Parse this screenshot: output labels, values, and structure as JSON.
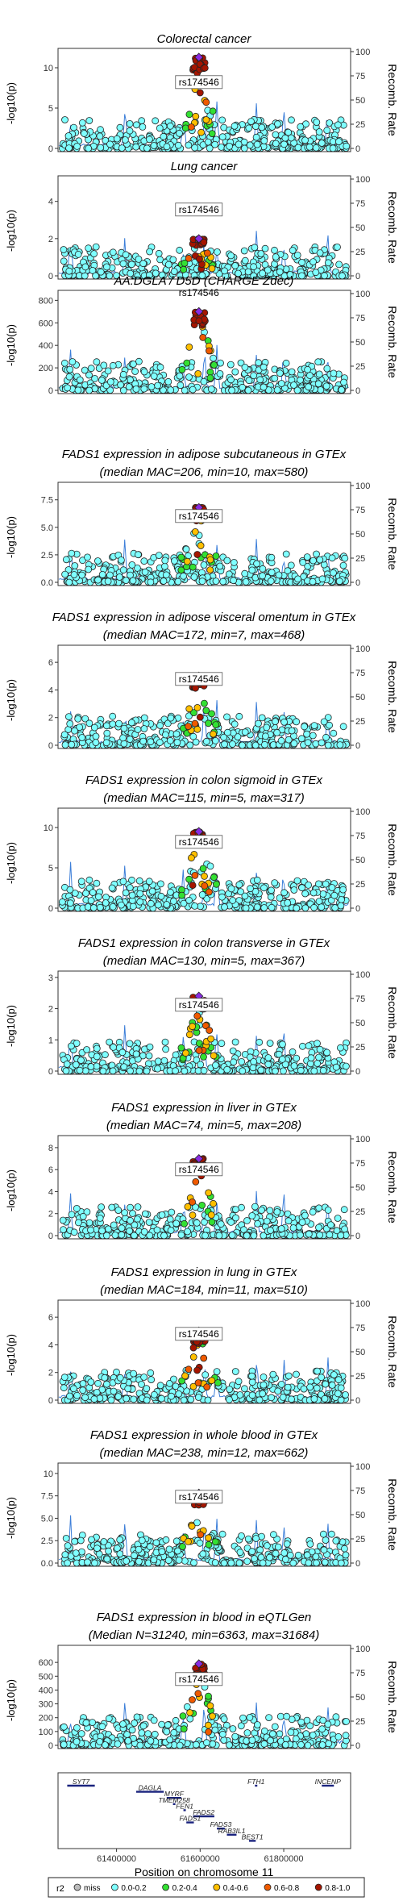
{
  "chart_data": [
    {
      "type": "scatter",
      "title": "Colorectal cancer",
      "subtitle": "",
      "ylabel": "-log10(p)",
      "y2label": "Recomb. Rate",
      "ylim": [
        0,
        12
      ],
      "yticks": [
        0,
        5,
        10
      ],
      "y2ticks": [
        0,
        25,
        50,
        75,
        100
      ],
      "lead_snp": "rs174546",
      "lead_value": 11.3,
      "seed": 11
    },
    {
      "type": "scatter",
      "title": "Lung cancer",
      "subtitle": "",
      "ylabel": "-log10(p)",
      "y2label": "Recomb. Rate",
      "ylim": [
        0,
        5.2
      ],
      "yticks": [
        0,
        2,
        4
      ],
      "y2ticks": [
        0,
        25,
        50,
        75,
        100
      ],
      "lead_snp": "rs174546",
      "lead_value": 2.0,
      "seed": 23
    },
    {
      "type": "scatter",
      "title": "AA:DGLA / D5D (CHARGE Zdec)",
      "subtitle": "",
      "ylabel": "-log10(p)",
      "y2label": "Recomb. Rate",
      "ylim": [
        0,
        860
      ],
      "yticks": [
        0,
        200,
        400,
        600,
        800
      ],
      "y2ticks": [
        0,
        25,
        50,
        75,
        100
      ],
      "lead_snp": "rs174546",
      "lead_value": 700,
      "seed": 37
    },
    {
      "type": "scatter",
      "title": "FADS1 expression in adipose subcutaneous in GTEx",
      "subtitle": "(median MAC=206, min=10, max=580)",
      "ylabel": "-log10(p)",
      "y2label": "Recomb. Rate",
      "ylim": [
        0,
        8.8
      ],
      "yticks": [
        0,
        2.5,
        5.0,
        7.5
      ],
      "y2ticks": [
        0,
        25,
        50,
        75,
        100
      ],
      "lead_snp": "rs174546",
      "lead_value": 6.8,
      "seed": 41
    },
    {
      "type": "scatter",
      "title": "FADS1 expression in adipose visceral omentum in GTEx",
      "subtitle": "(median MAC=172, min=7, max=468)",
      "ylabel": "-log10(p)",
      "y2label": "Recomb. Rate",
      "ylim": [
        0,
        7
      ],
      "yticks": [
        0,
        2,
        4,
        6
      ],
      "y2ticks": [
        0,
        25,
        50,
        75,
        100
      ],
      "lead_snp": "rs174546",
      "lead_value": 5.0,
      "seed": 53
    },
    {
      "type": "scatter",
      "title": "FADS1 expression in colon sigmoid in GTEx",
      "subtitle": "(median MAC=115, min=5, max=317)",
      "ylabel": "-log10(p)",
      "y2label": "Recomb. Rate",
      "ylim": [
        0,
        12
      ],
      "yticks": [
        0,
        5,
        10
      ],
      "y2ticks": [
        0,
        25,
        50,
        75,
        100
      ],
      "lead_snp": "rs174546",
      "lead_value": 9.5,
      "seed": 61
    },
    {
      "type": "scatter",
      "title": "FADS1 expression in colon transverse in GTEx",
      "subtitle": "(median MAC=130, min=5, max=367)",
      "ylabel": "-log10(p)",
      "y2label": "Recomb. Rate",
      "ylim": [
        0,
        3.1
      ],
      "yticks": [
        0,
        1,
        2,
        3
      ],
      "y2ticks": [
        0,
        25,
        50,
        75,
        100
      ],
      "lead_snp": "rs174546",
      "lead_value": 2.4,
      "seed": 73
    },
    {
      "type": "scatter",
      "title": "FADS1 expression in liver in GTEx",
      "subtitle": "(median MAC=74, min=5, max=208)",
      "ylabel": "-log10(p)",
      "y2label": "Recomb. Rate",
      "ylim": [
        0,
        8.8
      ],
      "yticks": [
        0,
        2,
        4,
        6,
        8
      ],
      "y2ticks": [
        0,
        25,
        50,
        75,
        100
      ],
      "lead_snp": "rs174546",
      "lead_value": 7.0,
      "seed": 83
    },
    {
      "type": "scatter",
      "title": "FADS1 expression in lung in GTEx",
      "subtitle": "(median MAC=184, min=11, max=510)",
      "ylabel": "-log10(p)",
      "y2label": "Recomb. Rate",
      "ylim": [
        0,
        7
      ],
      "yticks": [
        0,
        2,
        4,
        6
      ],
      "y2ticks": [
        0,
        25,
        50,
        75,
        100
      ],
      "lead_snp": "rs174546",
      "lead_value": 5.0,
      "seed": 97
    },
    {
      "type": "scatter",
      "title": "FADS1 expression in whole blood in GTEx",
      "subtitle": "(median MAC=238, min=12, max=662)",
      "ylabel": "-log10(p)",
      "y2label": "Recomb. Rate",
      "ylim": [
        0,
        10.8
      ],
      "yticks": [
        0,
        2.5,
        5.0,
        7.5,
        10.0
      ],
      "y2ticks": [
        0,
        25,
        50,
        75,
        100
      ],
      "lead_snp": "rs174546",
      "lead_value": 7.8,
      "seed": 101
    },
    {
      "type": "scatter",
      "title": "FADS1 expression in blood in eQTLGen",
      "subtitle": "(Median N=31240, min=6363, max=31684)",
      "ylabel": "-log10(p)",
      "y2label": "Recomb. Rate",
      "ylim": [
        0,
        700
      ],
      "yticks": [
        0,
        100,
        200,
        300,
        400,
        500,
        600
      ],
      "y2ticks": [
        0,
        25,
        50,
        75,
        100
      ],
      "lead_snp": "rs174546",
      "lead_value": 590,
      "seed": 113
    }
  ],
  "genes": {
    "xlabel": "Position on chromosome 11",
    "xlim": [
      61260000,
      61960000
    ],
    "xticks": [
      61400000,
      61600000,
      61800000
    ],
    "xtick_labels": [
      "61400000",
      "61600000",
      "61800000"
    ],
    "items": [
      {
        "name": "SYT7",
        "start": 61282000,
        "end": 61348000,
        "row": 0
      },
      {
        "name": "FTH1",
        "start": 61731000,
        "end": 61735000,
        "row": 0
      },
      {
        "name": "INCENP",
        "start": 61891000,
        "end": 61920000,
        "row": 0
      },
      {
        "name": "DAGLA",
        "start": 61447000,
        "end": 61513000,
        "row": 1
      },
      {
        "name": "MYRF",
        "start": 61520000,
        "end": 61555000,
        "row": 2
      },
      {
        "name": "TMEM258",
        "start": 61535000,
        "end": 61538000,
        "row": 3
      },
      {
        "name": "FEN1",
        "start": 61560000,
        "end": 61565000,
        "row": 4
      },
      {
        "name": "FADS2",
        "start": 61583000,
        "end": 61634000,
        "row": 5
      },
      {
        "name": "FADS1",
        "start": 61567000,
        "end": 61585000,
        "row": 6
      },
      {
        "name": "FADS3",
        "start": 61640000,
        "end": 61659000,
        "row": 7
      },
      {
        "name": "RAB3IL1",
        "start": 61664000,
        "end": 61687000,
        "row": 8
      },
      {
        "name": "BEST1",
        "start": 61717000,
        "end": 61733000,
        "row": 9
      }
    ]
  },
  "legend": {
    "title": "r2",
    "items": [
      {
        "label": "miss",
        "color": "#bcbcbc"
      },
      {
        "label": "0.0-0.2",
        "color": "#7fffff"
      },
      {
        "label": "0.2-0.4",
        "color": "#33e033"
      },
      {
        "label": "0.4-0.6",
        "color": "#ffbf00"
      },
      {
        "label": "0.6-0.8",
        "color": "#f05a00"
      },
      {
        "label": "0.8-1.0",
        "color": "#a51500"
      }
    ],
    "lead_color": "#8a2be2",
    "recomb_color": "#3d7fd9"
  }
}
